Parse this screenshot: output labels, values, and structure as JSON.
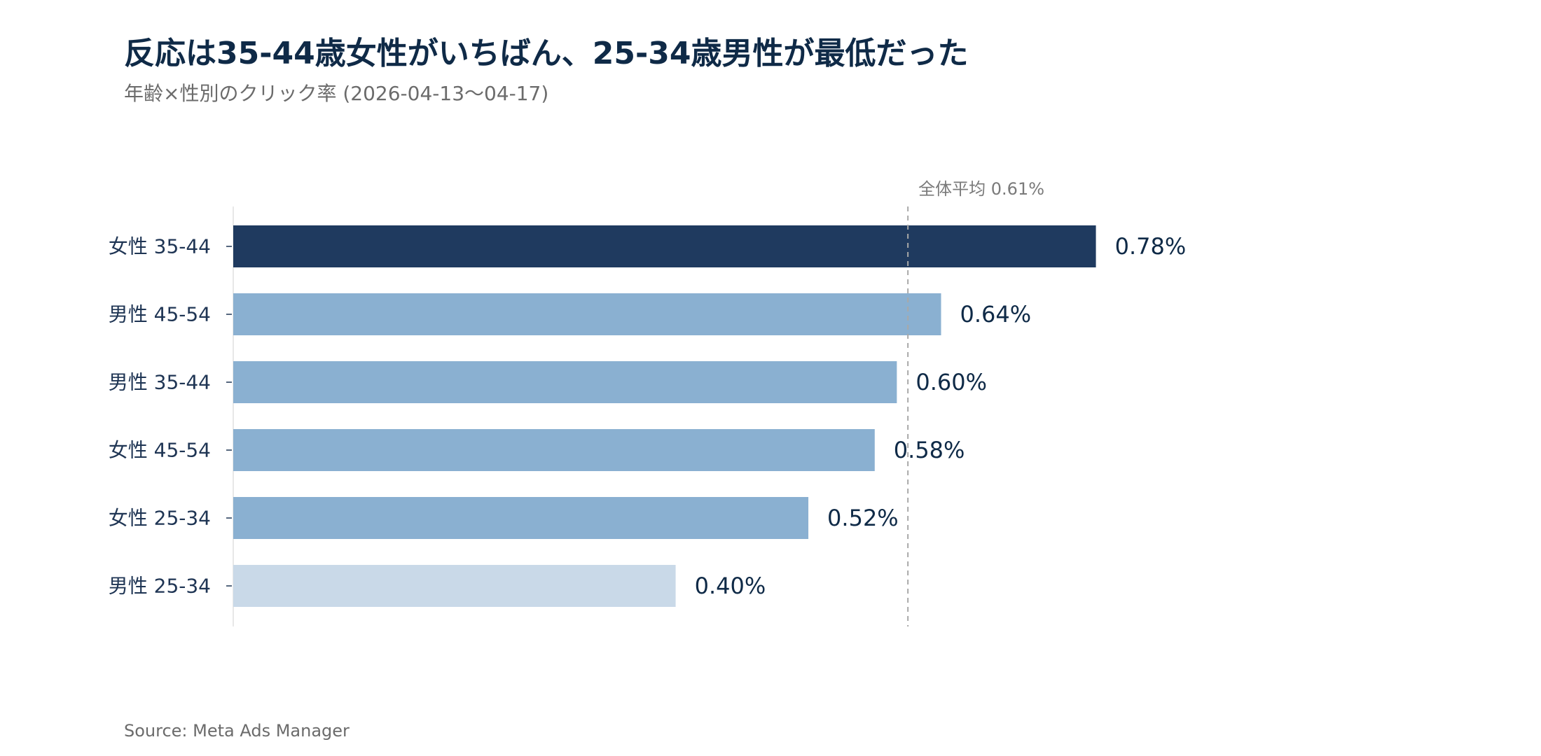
{
  "header": {
    "title": "反応は35-44歳女性がいちばん、25-34歳男性が最低だった",
    "subtitle": "年齢×性別のクリック率 (2026-04-13〜04-17)"
  },
  "footer": {
    "source": "Source: Meta Ads Manager"
  },
  "colors": {
    "highlight": "#1f3a5f",
    "mid": "#8ab0d1",
    "low": "#c9d9e8",
    "reference_line": "#a8a8a8",
    "axis": "#e0e0e0"
  },
  "chart_data": {
    "type": "bar",
    "orientation": "horizontal",
    "categories": [
      "女性 35-44",
      "男性 45-54",
      "男性 35-44",
      "女性 45-54",
      "女性 25-34",
      "男性 25-34"
    ],
    "values": [
      0.78,
      0.64,
      0.6,
      0.58,
      0.52,
      0.4
    ],
    "value_labels": [
      "0.78%",
      "0.64%",
      "0.60%",
      "0.58%",
      "0.52%",
      "0.40%"
    ],
    "bar_colors": [
      "#1f3a5f",
      "#8ab0d1",
      "#8ab0d1",
      "#8ab0d1",
      "#8ab0d1",
      "#c9d9e8"
    ],
    "unit": "%",
    "xlim": [
      0,
      0.95
    ],
    "reference_line": {
      "value": 0.61,
      "label": "全体平均 0.61%"
    },
    "grid": false
  }
}
